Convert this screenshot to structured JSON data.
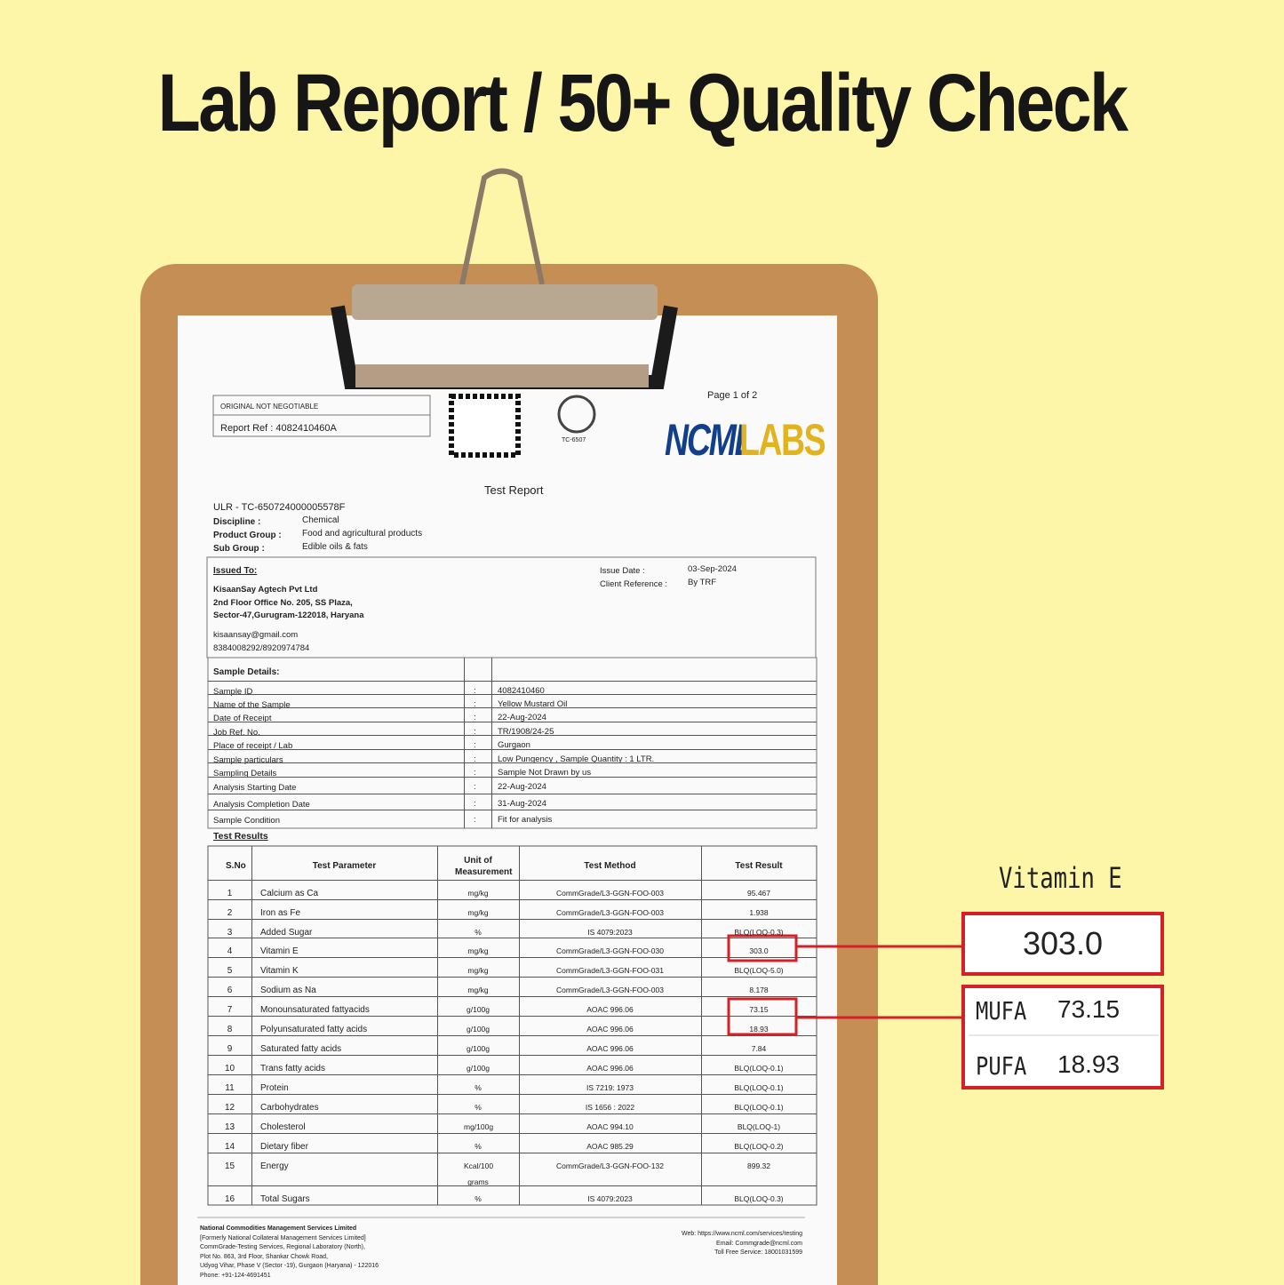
{
  "title": "Lab Report / 50+ Quality Check",
  "report": {
    "header_box": {
      "note": "ORIGINAL NOT NEGOTIABLE",
      "ref": "Report Ref : 4082410460A"
    },
    "accreditation": "TC-6507",
    "page": "Page 1 of 2",
    "logo": {
      "left": "NCML",
      "right": "LABS"
    },
    "heading": "Test Report",
    "ulr": "ULR - TC-650724000005578F",
    "meta": [
      [
        "Discipline :",
        "Chemical"
      ],
      [
        "Product Group :",
        "Food and agricultural products"
      ],
      [
        "Sub Group :",
        "Edible oils & fats"
      ]
    ],
    "issued_to": {
      "label": "Issued To:",
      "lines": [
        "KisaanSay Agtech Pvt Ltd",
        "2nd Floor Office No. 205, SS Plaza,",
        "Sector-47,Gurugram-122018, Haryana",
        "kisaansay@gmail.com",
        "8384008292/8920974784"
      ],
      "fields": [
        [
          "Issue Date :",
          "03-Sep-2024"
        ],
        [
          "Client Reference :",
          "By TRF"
        ]
      ]
    },
    "sample_details": {
      "label": "Sample Details:",
      "rows": [
        [
          "Sample ID",
          ":",
          "4082410460"
        ],
        [
          "Name of the Sample",
          ":",
          "Yellow Mustard Oil"
        ],
        [
          "Date of Receipt",
          ":",
          "22-Aug-2024"
        ],
        [
          "Job Ref. No.",
          ":",
          "TR/1908/24-25"
        ],
        [
          "Place of receipt / Lab",
          ":",
          "Gurgaon"
        ],
        [
          "Sample particulars",
          ":",
          "Low Pungency , Sample Quantity : 1 LTR."
        ],
        [
          "Sampling Details",
          ":",
          "Sample Not Drawn by us"
        ],
        [
          "Analysis Starting Date",
          ":",
          "22-Aug-2024"
        ],
        [
          "Analysis Completion Date",
          ":",
          "31-Aug-2024"
        ],
        [
          "Sample Condition",
          ":",
          "Fit for analysis"
        ]
      ]
    },
    "test_results": {
      "label": "Test Results",
      "columns": [
        "S.No",
        "Test Parameter",
        "Unit of Measurement",
        "Test Method",
        "Test Result"
      ],
      "rows": [
        [
          "1",
          "Calcium as Ca",
          "mg/kg",
          "CommGrade/L3-GGN-FOO-003",
          "95.467"
        ],
        [
          "2",
          "Iron as Fe",
          "mg/kg",
          "CommGrade/L3-GGN-FOO-003",
          "1.938"
        ],
        [
          "3",
          "Added Sugar",
          "%",
          "IS 4079:2023",
          "BLQ(LOQ-0.3)"
        ],
        [
          "4",
          "Vitamin E",
          "mg/kg",
          "CommGrade/L3-GGN-FOO-030",
          "303.0"
        ],
        [
          "5",
          "Vitamin K",
          "mg/kg",
          "CommGrade/L3-GGN-FOO-031",
          "BLQ(LOQ-5.0)"
        ],
        [
          "6",
          "Sodium as Na",
          "mg/kg",
          "CommGrade/L3-GGN-FOO-003",
          "8.178"
        ],
        [
          "7",
          "Monounsaturated fattyacids",
          "g/100g",
          "AOAC 996.06",
          "73.15"
        ],
        [
          "8",
          "Polyunsaturated fatty acids",
          "g/100g",
          "AOAC 996.06",
          "18.93"
        ],
        [
          "9",
          "Saturated fatty acids",
          "g/100g",
          "AOAC 996.06",
          "7.84"
        ],
        [
          "10",
          "Trans fatty acids",
          "g/100g",
          "AOAC 996.06",
          "BLQ(LOQ-0.1)"
        ],
        [
          "11",
          "Protein",
          "%",
          "IS 7219: 1973",
          "BLQ(LOQ-0.1)"
        ],
        [
          "12",
          "Carbohydrates",
          "%",
          "IS 1656 : 2022",
          "BLQ(LOQ-0.1)"
        ],
        [
          "13",
          "Cholesterol",
          "mg/100g",
          "AOAC 994.10",
          "BLQ(LOQ-1)"
        ],
        [
          "14",
          "Dietary fiber",
          "%",
          "AOAC 985.29",
          "BLQ(LOQ-0.2)"
        ],
        [
          "15",
          "Energy",
          "Kcal/100 grams",
          "CommGrade/L3-GGN-FOO-132",
          "899.32"
        ],
        [
          "16",
          "Total Sugars",
          "%",
          "IS 4079:2023",
          "BLQ(LOQ-0.3)"
        ]
      ]
    },
    "footer": {
      "left": [
        "National Commodities Management Services Limited",
        "[Formerly National Collateral Management Services Limited]",
        "CommGrade-Testing Services, Regional Laboratory (North),",
        "Plot No. 863, 3rd Floor, Shankar Chowk Road,",
        "Udyog Vihar, Phase V (Sector -19), Gurgaon (Haryana) - 122016",
        "Phone: +91-124-4691451"
      ],
      "right": [
        "Web: https://www.ncml.com/services/testing",
        "Email: Commgrade@ncml.com",
        "Toll Free Service: 18001031599"
      ]
    }
  },
  "callouts": {
    "vitamin_e": {
      "label": "Vitamin E",
      "value": "303.0"
    },
    "fatty_acids": [
      {
        "label": "MUFA",
        "value": "73.15"
      },
      {
        "label": "PUFA",
        "value": "18.93"
      }
    ]
  }
}
